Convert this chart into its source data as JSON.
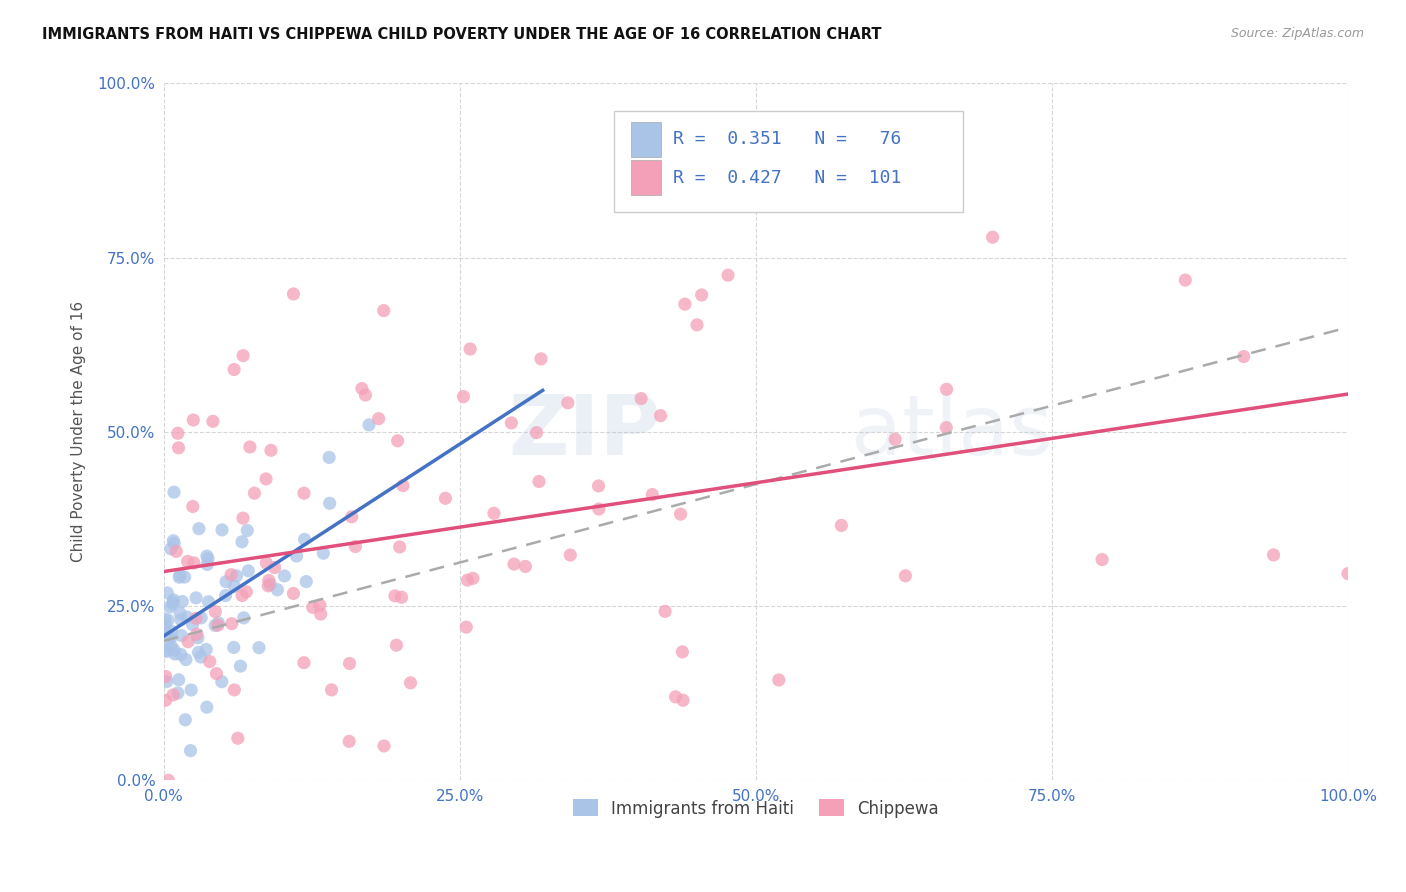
{
  "title": "IMMIGRANTS FROM HAITI VS CHIPPEWA CHILD POVERTY UNDER THE AGE OF 16 CORRELATION CHART",
  "source": "Source: ZipAtlas.com",
  "ylabel": "Child Poverty Under the Age of 16",
  "legend_label_1": "Immigrants from Haiti",
  "legend_label_2": "Chippewa",
  "r1": 0.351,
  "n1": 76,
  "r2": 0.427,
  "n2": 101,
  "color1": "#aac4e8",
  "color2": "#f4a0b8",
  "line_color1": "#4472c4",
  "line_color2": "#e0507a",
  "line_color_dashed": "#aaaaaa",
  "background_color": "#ffffff",
  "grid_color": "#cccccc",
  "watermark_zip": "ZIP",
  "watermark_atlas": "atlas",
  "xmin": 0.0,
  "xmax": 1.0,
  "ymin": 0.0,
  "ymax": 1.0,
  "seed1": 42,
  "seed2": 99
}
